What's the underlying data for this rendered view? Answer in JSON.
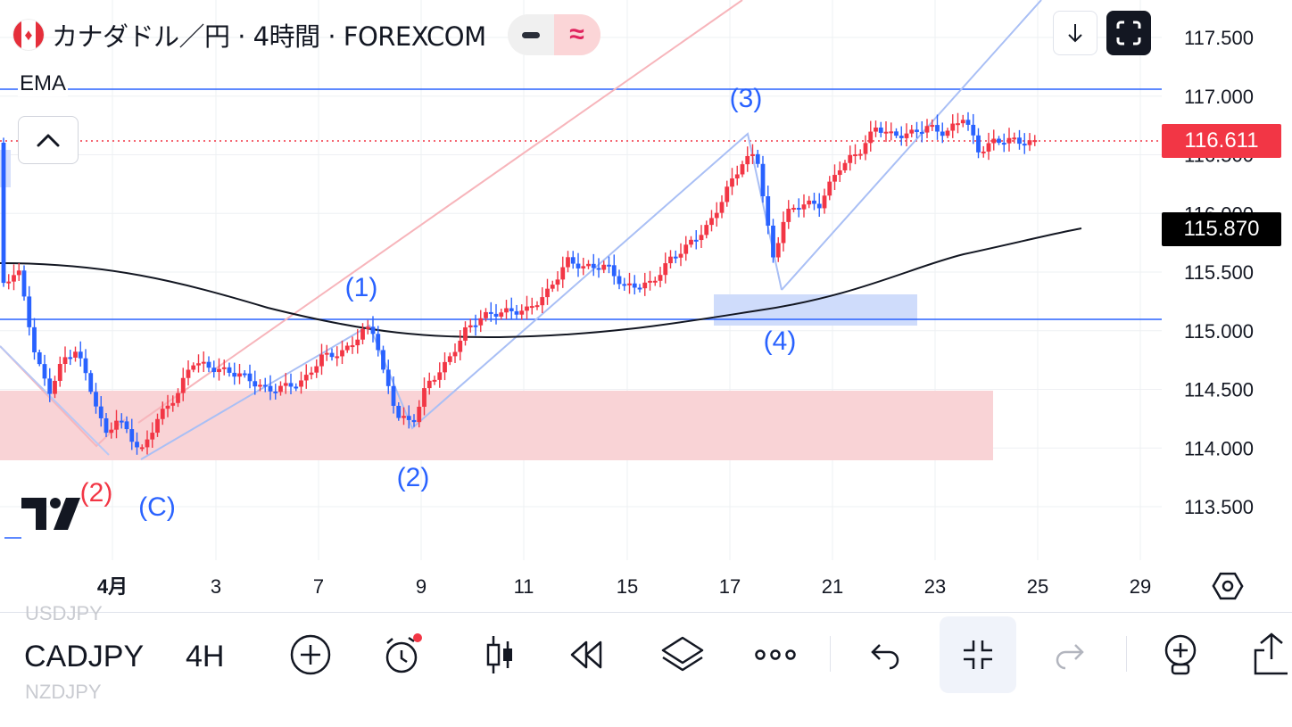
{
  "header": {
    "symbol_title": "カナダドル／円 · 4時間 · FOREXCOM",
    "toggle_mode": "≈"
  },
  "indicator": {
    "label": "EMA"
  },
  "chart_data": {
    "type": "candlestick",
    "symbol": "CADJPY",
    "interval": "4H",
    "y_ticks": [
      "117.500",
      "117.000",
      "116.500",
      "116.000",
      "115.500",
      "115.000",
      "114.500",
      "114.000",
      "113.500"
    ],
    "x_ticks": [
      "4月",
      "3",
      "7",
      "9",
      "11",
      "15",
      "17",
      "21",
      "23",
      "25",
      "29"
    ],
    "last_price": "116.611",
    "ema_price": "115.870",
    "horizontal_lines": [
      117.04,
      115.1
    ],
    "zones": [
      {
        "name": "support-zone",
        "from": 113.9,
        "to": 114.48,
        "color": "#f8c9cd"
      },
      {
        "name": "wave4-zone",
        "from": 115.07,
        "to": 115.33,
        "color": "#cfdcfb"
      }
    ],
    "wave_labels": [
      {
        "text": "(2)",
        "color": "#f23645"
      },
      {
        "text": "(C)",
        "color": "#2962ff"
      },
      {
        "text": "(1)",
        "color": "#2962ff"
      },
      {
        "text": "(2)",
        "color": "#2962ff"
      },
      {
        "text": "(3)",
        "color": "#2962ff"
      },
      {
        "text": "(4)",
        "color": "#2962ff"
      }
    ],
    "colors": {
      "up": "#f23645",
      "down": "#2962ff",
      "ema": "#131722",
      "hline": "#2962ff"
    }
  },
  "toolbar": {
    "symbol": "CADJPY",
    "interval": "4H",
    "ghost_prev": "USDJPY",
    "ghost_next": "NZDJPY"
  }
}
